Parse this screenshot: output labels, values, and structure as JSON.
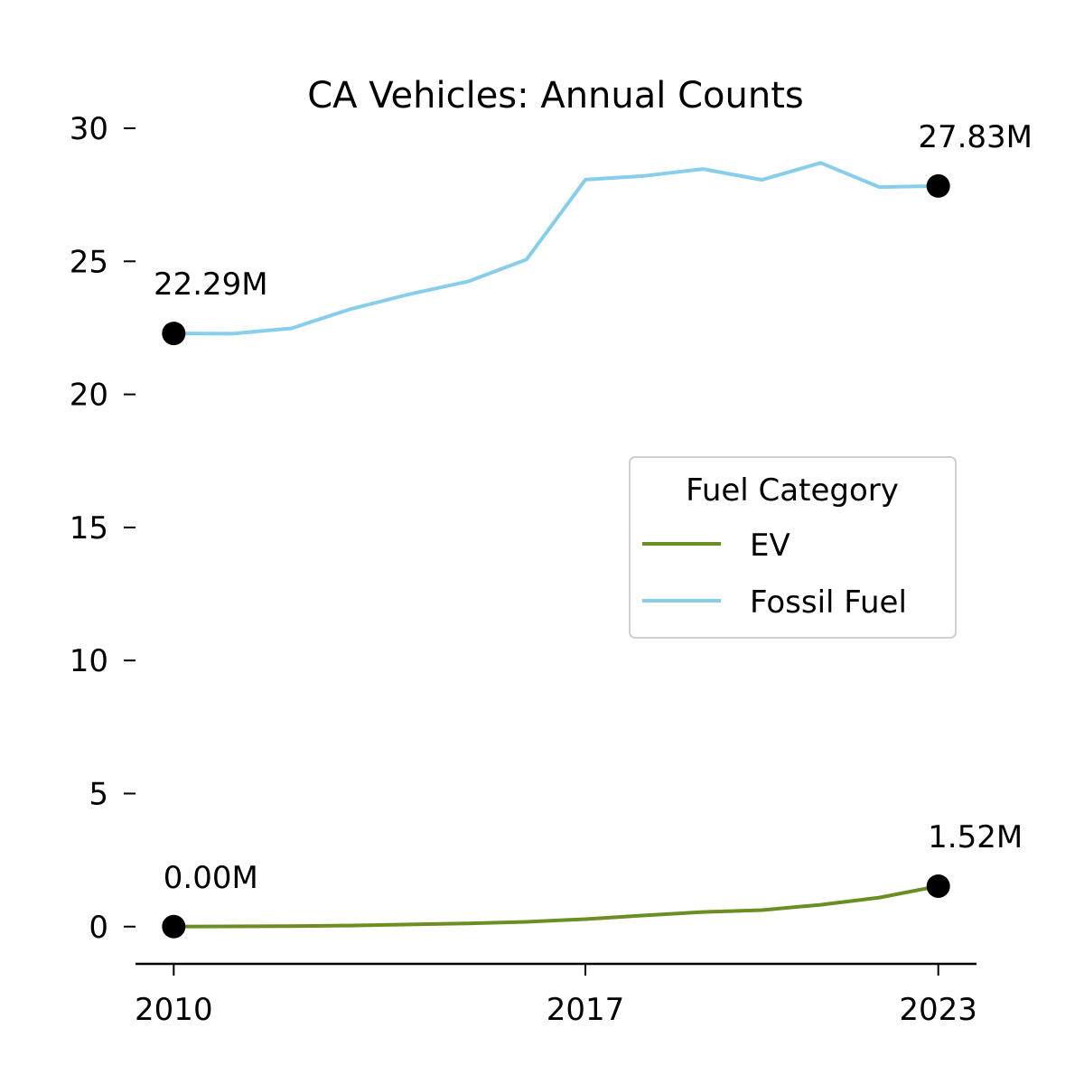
{
  "chart_data": {
    "type": "line",
    "title": "CA Vehicles: Annual Counts",
    "xlabel": "",
    "ylabel": "",
    "x": [
      2010,
      2011,
      2012,
      2013,
      2014,
      2015,
      2016,
      2017,
      2018,
      2019,
      2020,
      2021,
      2022,
      2023
    ],
    "xticks": [
      2010,
      2017,
      2023
    ],
    "xlim": [
      2009.35,
      2023.65
    ],
    "ylim": [
      -1.4,
      30
    ],
    "yticks": [
      0,
      5,
      10,
      15,
      20,
      25,
      30
    ],
    "grid": false,
    "legend": {
      "title": "Fuel Category",
      "position": "right"
    },
    "series": [
      {
        "name": "EV",
        "color": "#6b8e23",
        "values": [
          0.0,
          0.01,
          0.02,
          0.04,
          0.08,
          0.12,
          0.18,
          0.28,
          0.42,
          0.55,
          0.62,
          0.82,
          1.09,
          1.52
        ]
      },
      {
        "name": "Fossil Fuel",
        "color": "#87ceeb",
        "values": [
          22.29,
          22.28,
          22.48,
          23.2,
          23.76,
          24.24,
          25.07,
          28.07,
          28.21,
          28.47,
          28.06,
          28.7,
          27.79,
          27.83
        ]
      }
    ],
    "annotations": [
      {
        "series": "Fossil Fuel",
        "x": 2010,
        "y": 22.29,
        "text": "22.29M"
      },
      {
        "series": "Fossil Fuel",
        "x": 2023,
        "y": 27.83,
        "text": "27.83M"
      },
      {
        "series": "EV",
        "x": 2010,
        "y": 0.0,
        "text": "0.00M"
      },
      {
        "series": "EV",
        "x": 2023,
        "y": 1.52,
        "text": "1.52M"
      }
    ],
    "marker_color": "#000000"
  }
}
